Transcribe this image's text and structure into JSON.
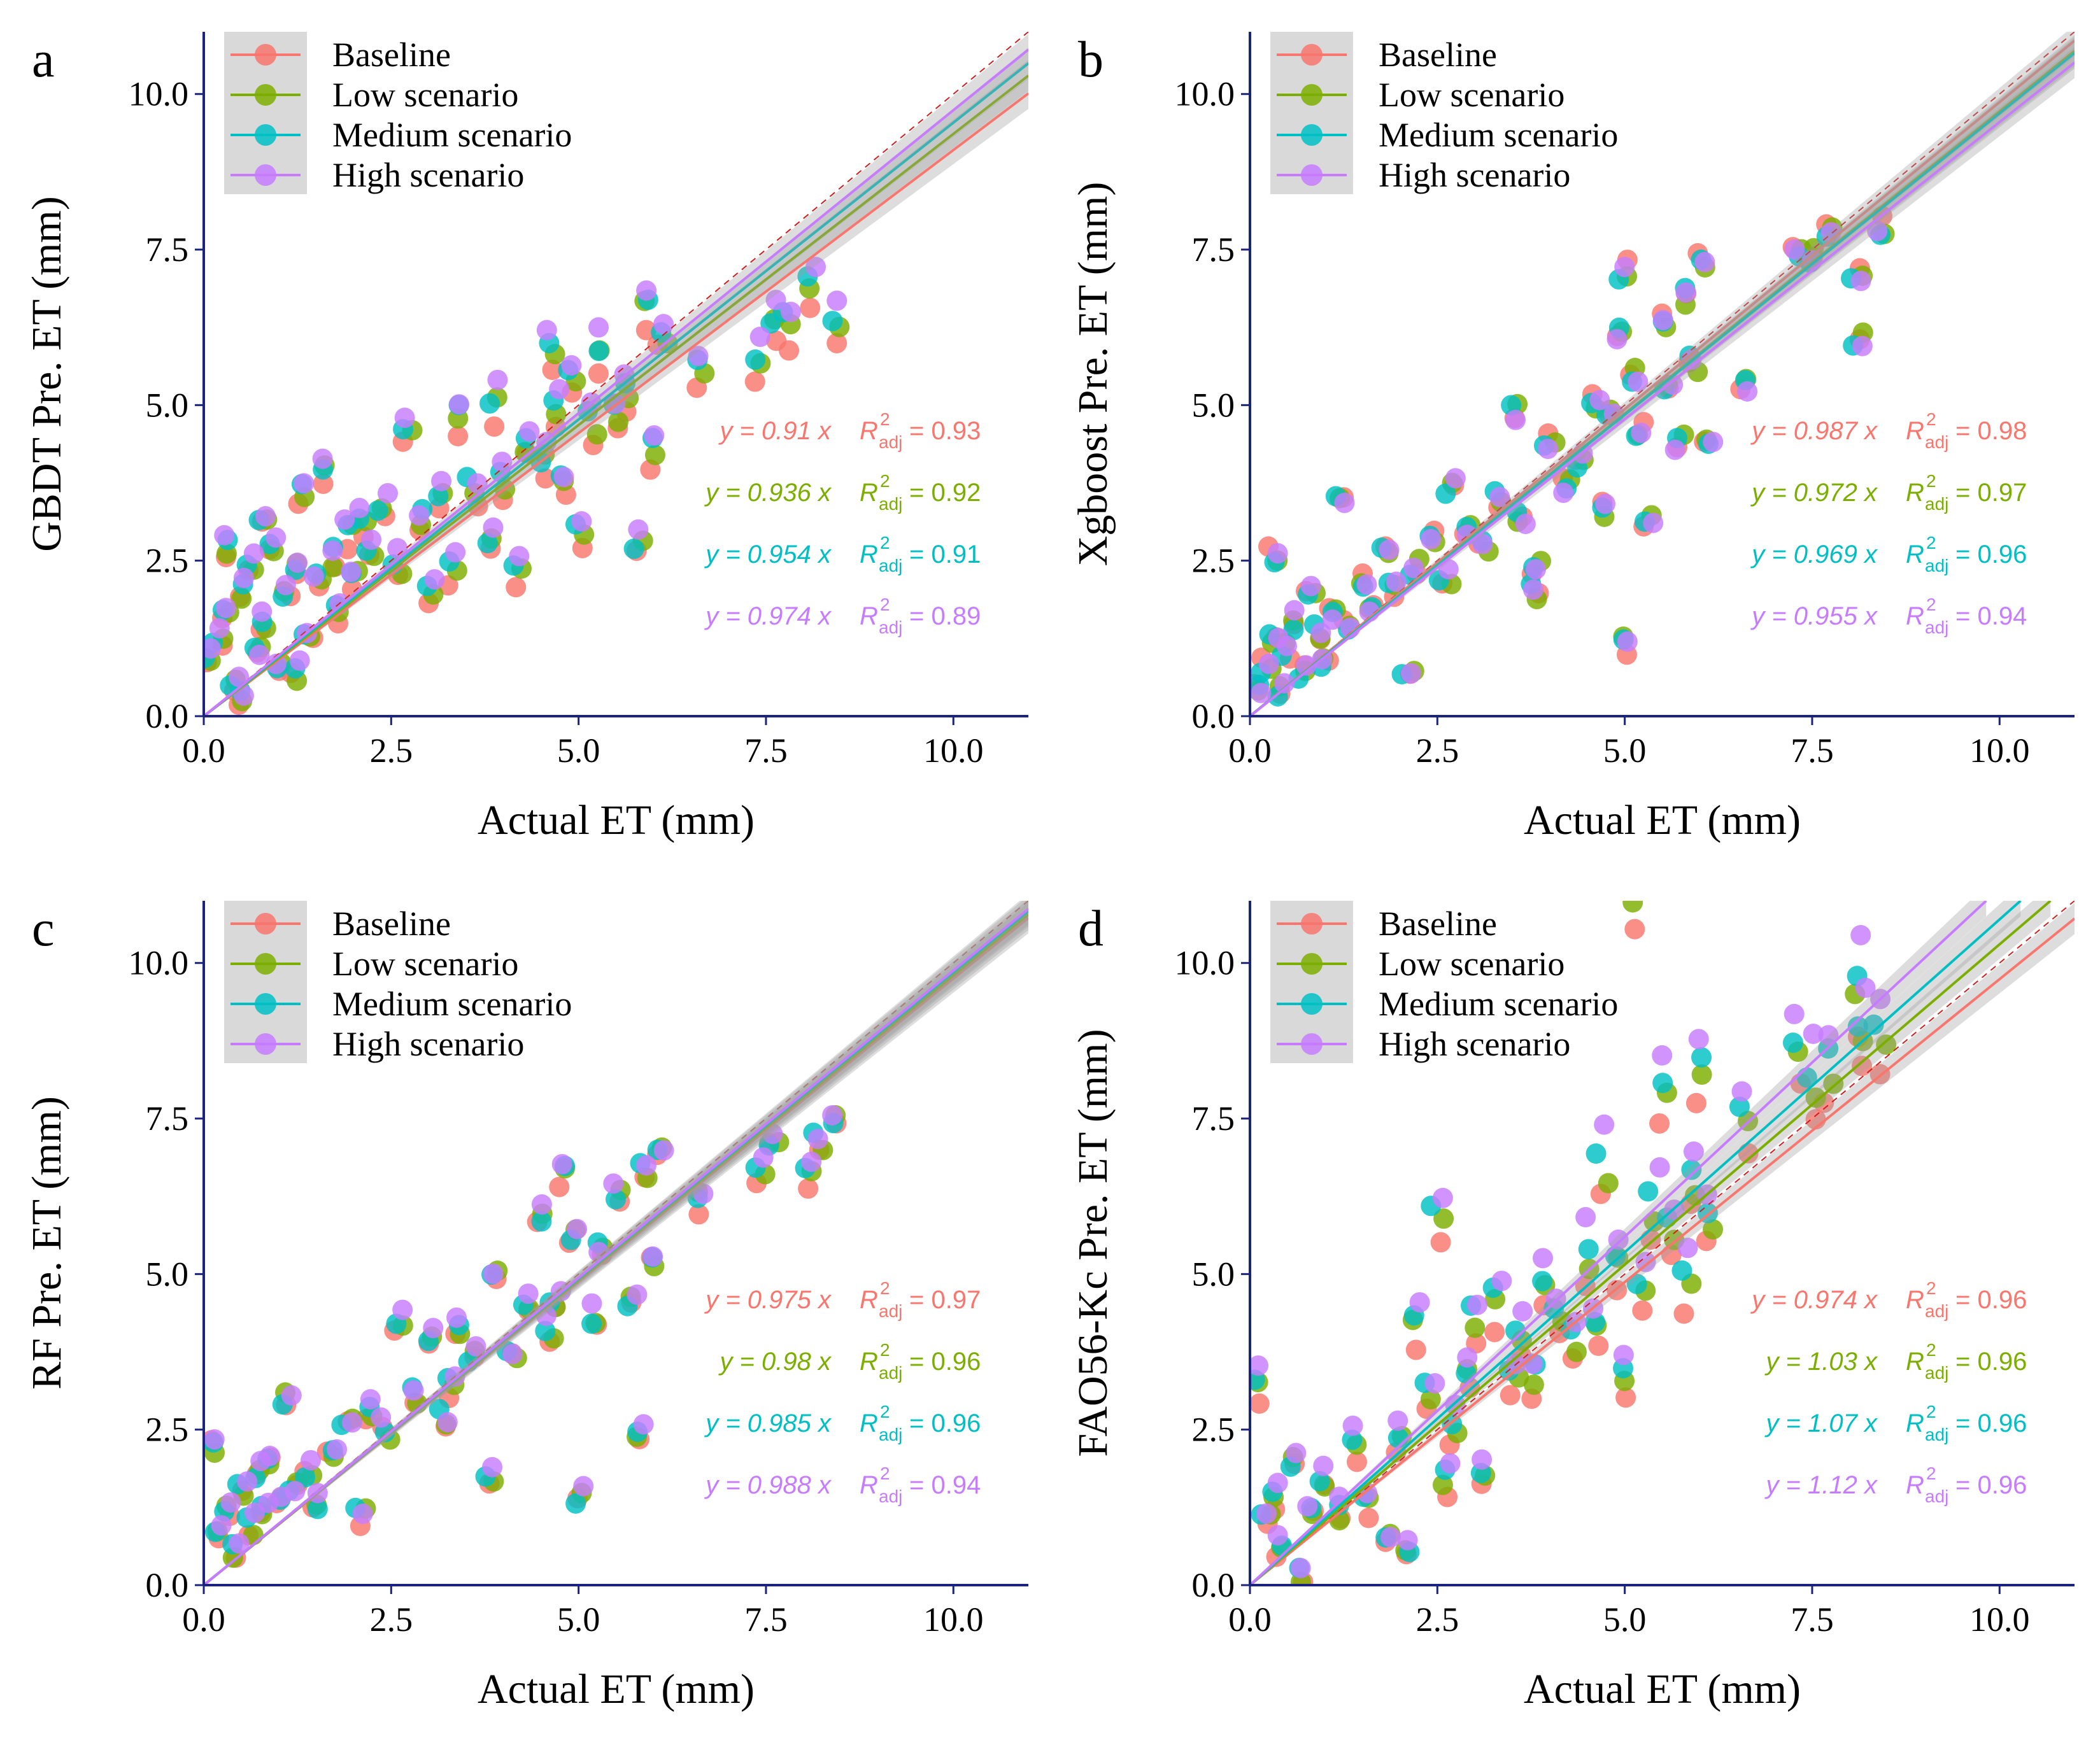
{
  "series_styles": [
    {
      "name": "Baseline",
      "color": "#F8766D"
    },
    {
      "name": "Low scenario",
      "color": "#7CAE00"
    },
    {
      "name": "Medium scenario",
      "color": "#00BFC4"
    },
    {
      "name": "High scenario",
      "color": "#C77CFF"
    }
  ],
  "eq_labels": {
    "y_prefix": "y = ",
    "x_suffix": " x",
    "r_symbol": "R",
    "r_sup": "2",
    "r_sub": "adj",
    "equals": " = "
  },
  "chart_data": [
    {
      "panel_label": "a",
      "type": "scatter",
      "xlabel": "Actual ET (mm)",
      "ylabel": "GBDT Pre. ET (mm)",
      "xlim": [
        0,
        11
      ],
      "ylim": [
        0,
        11
      ],
      "xticks": [
        "0.0",
        "2.5",
        "5.0",
        "7.5",
        "10.0"
      ],
      "yticks": [
        "0.0",
        "2.5",
        "5.0",
        "7.5",
        "10.0"
      ],
      "legend": [
        "Baseline",
        "Low scenario",
        "Medium scenario",
        "High scenario"
      ],
      "series": [
        {
          "name": "Baseline",
          "slope": 0.91,
          "slope_label": "0.91",
          "r2_label": "0.93"
        },
        {
          "name": "Low scenario",
          "slope": 0.936,
          "slope_label": "0.936",
          "r2_label": "0.92"
        },
        {
          "name": "Medium scenario",
          "slope": 0.954,
          "slope_label": "0.954",
          "r2_label": "0.91"
        },
        {
          "name": "High scenario",
          "slope": 0.974,
          "slope_label": "0.974",
          "r2_label": "0.89"
        }
      ],
      "points": [
        [
          0.1,
          0.8
        ],
        [
          0.2,
          1.2
        ],
        [
          0.3,
          1.6
        ],
        [
          0.4,
          0.5
        ],
        [
          0.5,
          1.9
        ],
        [
          0.6,
          2.2
        ],
        [
          0.7,
          0.9
        ],
        [
          0.8,
          1.4
        ],
        [
          0.9,
          2.6
        ],
        [
          1.0,
          0.7
        ],
        [
          1.1,
          1.8
        ],
        [
          1.2,
          2.3
        ],
        [
          1.3,
          3.5
        ],
        [
          1.4,
          1.2
        ],
        [
          1.5,
          2.0
        ],
        [
          1.6,
          3.8
        ],
        [
          1.7,
          2.4
        ],
        [
          1.8,
          1.6
        ],
        [
          1.9,
          2.8
        ],
        [
          2.0,
          2.1
        ],
        [
          2.1,
          3.0
        ],
        [
          2.2,
          2.5
        ],
        [
          2.4,
          3.2
        ],
        [
          2.6,
          2.3
        ],
        [
          2.7,
          4.3
        ],
        [
          2.9,
          3.0
        ],
        [
          3.0,
          1.9
        ],
        [
          3.2,
          3.4
        ],
        [
          3.3,
          2.2
        ],
        [
          3.4,
          4.6
        ],
        [
          3.6,
          3.5
        ],
        [
          3.8,
          2.6
        ],
        [
          3.9,
          4.8
        ],
        [
          4.0,
          3.6
        ],
        [
          4.2,
          2.2
        ],
        [
          4.3,
          4.2
        ],
        [
          4.5,
          3.9
        ],
        [
          4.6,
          5.6
        ],
        [
          4.7,
          4.7
        ],
        [
          4.8,
          3.6
        ],
        [
          4.9,
          5.2
        ],
        [
          5.0,
          2.8
        ],
        [
          5.2,
          4.5
        ],
        [
          5.3,
          5.6
        ],
        [
          5.5,
          4.6
        ],
        [
          5.6,
          5.0
        ],
        [
          5.8,
          2.6
        ],
        [
          5.9,
          6.3
        ],
        [
          6.0,
          4.1
        ],
        [
          6.1,
          5.9
        ],
        [
          6.6,
          5.3
        ],
        [
          7.4,
          5.5
        ],
        [
          7.6,
          6.1
        ],
        [
          7.8,
          6.0
        ],
        [
          8.1,
          6.6
        ],
        [
          8.4,
          6.0
        ],
        [
          0.3,
          2.6
        ],
        [
          0.5,
          0.2
        ],
        [
          0.8,
          3.0
        ],
        [
          1.2,
          0.6
        ]
      ]
    },
    {
      "panel_label": "b",
      "type": "scatter",
      "xlabel": "Actual ET (mm)",
      "ylabel": "Xgboost Pre. ET (mm)",
      "xlim": [
        0,
        11
      ],
      "ylim": [
        0,
        11
      ],
      "xticks": [
        "0.0",
        "2.5",
        "5.0",
        "7.5",
        "10.0"
      ],
      "yticks": [
        "0.0",
        "2.5",
        "5.0",
        "7.5",
        "10.0"
      ],
      "legend": [
        "Baseline",
        "Low scenario",
        "Medium scenario",
        "High scenario"
      ],
      "series": [
        {
          "name": "Baseline",
          "slope": 0.987,
          "slope_label": "0.987",
          "r2_label": "0.98"
        },
        {
          "name": "Low scenario",
          "slope": 0.972,
          "slope_label": "0.972",
          "r2_label": "0.97"
        },
        {
          "name": "Medium scenario",
          "slope": 0.969,
          "slope_label": "0.969",
          "r2_label": "0.96"
        },
        {
          "name": "High scenario",
          "slope": 0.955,
          "slope_label": "0.955",
          "r2_label": "0.94"
        }
      ],
      "points": [
        [
          0.1,
          0.4
        ],
        [
          0.2,
          0.8
        ],
        [
          0.3,
          1.2
        ],
        [
          0.4,
          0.3
        ],
        [
          0.5,
          1.0
        ],
        [
          0.6,
          1.5
        ],
        [
          0.7,
          0.7
        ],
        [
          0.8,
          2.0
        ],
        [
          0.9,
          1.3
        ],
        [
          1.0,
          0.9
        ],
        [
          1.1,
          1.6
        ],
        [
          1.2,
          3.4
        ],
        [
          1.3,
          1.4
        ],
        [
          1.5,
          2.2
        ],
        [
          1.6,
          1.7
        ],
        [
          1.8,
          2.6
        ],
        [
          1.9,
          2.0
        ],
        [
          2.1,
          0.6
        ],
        [
          2.2,
          2.4
        ],
        [
          2.4,
          2.9
        ],
        [
          2.6,
          2.2
        ],
        [
          2.7,
          3.7
        ],
        [
          2.9,
          3.0
        ],
        [
          3.1,
          2.7
        ],
        [
          3.3,
          3.5
        ],
        [
          3.5,
          4.9
        ],
        [
          3.6,
          3.2
        ],
        [
          3.8,
          2.4
        ],
        [
          4.0,
          4.4
        ],
        [
          4.2,
          3.7
        ],
        [
          4.4,
          4.1
        ],
        [
          4.6,
          5.1
        ],
        [
          4.7,
          3.3
        ],
        [
          4.8,
          4.8
        ],
        [
          4.9,
          6.2
        ],
        [
          5.0,
          1.1
        ],
        [
          5.1,
          5.5
        ],
        [
          5.2,
          4.6
        ],
        [
          5.3,
          3.2
        ],
        [
          5.5,
          6.4
        ],
        [
          5.6,
          5.3
        ],
        [
          5.7,
          4.4
        ],
        [
          5.8,
          6.8
        ],
        [
          5.9,
          5.7
        ],
        [
          6.0,
          7.3
        ],
        [
          6.1,
          4.5
        ],
        [
          6.6,
          5.3
        ],
        [
          7.3,
          7.6
        ],
        [
          7.5,
          7.5
        ],
        [
          7.7,
          7.8
        ],
        [
          8.1,
          7.2
        ],
        [
          8.1,
          6.1
        ],
        [
          8.4,
          7.9
        ],
        [
          0.3,
          2.6
        ],
        [
          5.0,
          7.2
        ],
        [
          3.8,
          2.0
        ]
      ]
    },
    {
      "panel_label": "c",
      "type": "scatter",
      "xlabel": "Actual ET (mm)",
      "ylabel": "RF Pre. ET (mm)",
      "xlim": [
        0,
        11
      ],
      "ylim": [
        0,
        11
      ],
      "xticks": [
        "0.0",
        "2.5",
        "5.0",
        "7.5",
        "10.0"
      ],
      "yticks": [
        "0.0",
        "2.5",
        "5.0",
        "7.5",
        "10.0"
      ],
      "legend": [
        "Baseline",
        "Low scenario",
        "Medium scenario",
        "High scenario"
      ],
      "series": [
        {
          "name": "Baseline",
          "slope": 0.975,
          "slope_label": "0.975",
          "r2_label": "0.97"
        },
        {
          "name": "Low scenario",
          "slope": 0.98,
          "slope_label": "0.98",
          "r2_label": "0.96"
        },
        {
          "name": "Medium scenario",
          "slope": 0.985,
          "slope_label": "0.985",
          "r2_label": "0.96"
        },
        {
          "name": "High scenario",
          "slope": 0.988,
          "slope_label": "0.988",
          "r2_label": "0.94"
        }
      ],
      "points": [
        [
          0.1,
          2.2
        ],
        [
          0.2,
          0.8
        ],
        [
          0.3,
          1.2
        ],
        [
          0.4,
          0.5
        ],
        [
          0.5,
          1.4
        ],
        [
          0.6,
          0.9
        ],
        [
          0.7,
          1.7
        ],
        [
          0.8,
          1.1
        ],
        [
          0.9,
          1.9
        ],
        [
          1.0,
          1.3
        ],
        [
          1.1,
          2.9
        ],
        [
          1.2,
          1.5
        ],
        [
          1.4,
          1.8
        ],
        [
          1.5,
          1.3
        ],
        [
          1.7,
          2.1
        ],
        [
          1.9,
          2.5
        ],
        [
          2.1,
          1.1
        ],
        [
          2.2,
          2.8
        ],
        [
          2.4,
          2.4
        ],
        [
          2.6,
          4.1
        ],
        [
          2.8,
          3.0
        ],
        [
          3.0,
          3.9
        ],
        [
          3.2,
          2.6
        ],
        [
          3.4,
          4.1
        ],
        [
          3.6,
          3.6
        ],
        [
          3.8,
          1.7
        ],
        [
          3.9,
          4.9
        ],
        [
          4.1,
          3.6
        ],
        [
          4.3,
          4.5
        ],
        [
          4.5,
          5.8
        ],
        [
          4.6,
          4.0
        ],
        [
          4.8,
          6.5
        ],
        [
          4.9,
          5.5
        ],
        [
          5.0,
          1.3
        ],
        [
          5.2,
          4.2
        ],
        [
          5.3,
          5.3
        ],
        [
          5.5,
          6.2
        ],
        [
          5.7,
          4.5
        ],
        [
          5.8,
          2.4
        ],
        [
          5.9,
          6.6
        ],
        [
          6.0,
          5.2
        ],
        [
          6.1,
          6.8
        ],
        [
          6.6,
          6.1
        ],
        [
          7.4,
          6.6
        ],
        [
          7.6,
          7.0
        ],
        [
          8.1,
          6.5
        ],
        [
          8.2,
          7.0
        ],
        [
          8.4,
          7.4
        ],
        [
          4.7,
          4.5
        ],
        [
          3.3,
          3.1
        ]
      ]
    },
    {
      "panel_label": "d",
      "type": "scatter",
      "xlabel": "Actual ET (mm)",
      "ylabel": "FAO56-Kc Pre. ET (mm)",
      "xlim": [
        0,
        11
      ],
      "ylim": [
        0,
        11
      ],
      "xticks": [
        "0.0",
        "2.5",
        "5.0",
        "7.5",
        "10.0"
      ],
      "yticks": [
        "0.0",
        "2.5",
        "5.0",
        "7.5",
        "10.0"
      ],
      "legend": [
        "Baseline",
        "Low scenario",
        "Medium scenario",
        "High scenario"
      ],
      "series": [
        {
          "name": "Baseline",
          "slope": 0.974,
          "slope_label": "0.974",
          "r2_label": "0.96"
        },
        {
          "name": "Low scenario",
          "slope": 1.03,
          "slope_label": "1.03",
          "r2_label": "0.96"
        },
        {
          "name": "Medium scenario",
          "slope": 1.07,
          "slope_label": "1.07",
          "r2_label": "0.96"
        },
        {
          "name": "High scenario",
          "slope": 1.12,
          "slope_label": "1.12",
          "r2_label": "0.96"
        }
      ],
      "points": [
        [
          0.1,
          3.0
        ],
        [
          0.2,
          0.9
        ],
        [
          0.3,
          1.2
        ],
        [
          0.4,
          0.6
        ],
        [
          0.6,
          1.8
        ],
        [
          0.7,
          0.1
        ],
        [
          0.8,
          1.1
        ],
        [
          1.0,
          1.5
        ],
        [
          1.2,
          1.0
        ],
        [
          1.4,
          2.0
        ],
        [
          1.6,
          1.2
        ],
        [
          1.8,
          0.6
        ],
        [
          2.0,
          2.2
        ],
        [
          2.1,
          0.4
        ],
        [
          2.2,
          3.9
        ],
        [
          2.4,
          2.8
        ],
        [
          2.5,
          5.4
        ],
        [
          2.6,
          1.5
        ],
        [
          2.7,
          2.4
        ],
        [
          2.9,
          3.1
        ],
        [
          3.0,
          3.9
        ],
        [
          3.1,
          1.6
        ],
        [
          3.3,
          4.2
        ],
        [
          3.5,
          3.0
        ],
        [
          3.6,
          3.7
        ],
        [
          3.8,
          3.1
        ],
        [
          3.9,
          4.4
        ],
        [
          4.1,
          4.0
        ],
        [
          4.3,
          3.6
        ],
        [
          4.5,
          4.9
        ],
        [
          4.6,
          3.8
        ],
        [
          4.7,
          6.2
        ],
        [
          4.9,
          4.8
        ],
        [
          5.0,
          3.1
        ],
        [
          5.1,
          10.4
        ],
        [
          5.2,
          4.4
        ],
        [
          5.4,
          5.6
        ],
        [
          5.5,
          7.3
        ],
        [
          5.6,
          5.2
        ],
        [
          5.8,
          4.5
        ],
        [
          5.9,
          6.0
        ],
        [
          6.0,
          7.6
        ],
        [
          6.1,
          5.4
        ],
        [
          6.6,
          6.9
        ],
        [
          7.3,
          8.0
        ],
        [
          7.5,
          7.5
        ],
        [
          7.7,
          7.7
        ],
        [
          8.1,
          8.9
        ],
        [
          8.2,
          8.2
        ],
        [
          8.4,
          8.1
        ]
      ]
    }
  ]
}
